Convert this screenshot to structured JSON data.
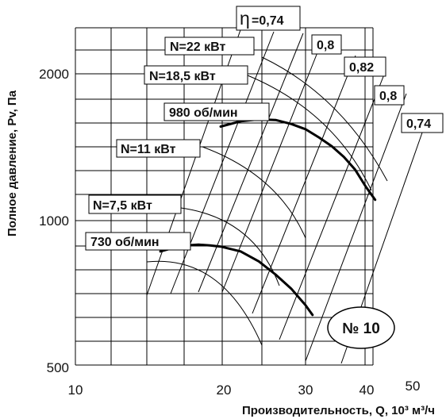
{
  "chart_data": {
    "type": "line",
    "title": "",
    "xlabel": "Производительность, Q, 10³ м³/ч",
    "ylabel": "Полное давление, Pv, Па",
    "xscale": "log",
    "yscale": "log",
    "xlim": [
      10,
      50
    ],
    "ylim": [
      500,
      2500
    ],
    "grid": true,
    "x_ticks": [
      "10",
      "20",
      "30",
      "40",
      "50"
    ],
    "y_ticks": [
      "500",
      "1000",
      "2000"
    ],
    "model_label": "№ 10",
    "series": [
      {
        "name": "980 об/мин",
        "x": [
          20,
          22,
          24,
          26,
          28,
          30,
          32,
          34,
          36,
          38,
          40,
          41.8
        ],
        "y": [
          1560,
          1600,
          1615,
          1610,
          1580,
          1540,
          1480,
          1420,
          1350,
          1270,
          1170,
          1100
        ]
      },
      {
        "name": "730 об/мин",
        "x": [
          15,
          16,
          17,
          18,
          19,
          20,
          22,
          24,
          26,
          28,
          30,
          31
        ],
        "y": [
          860,
          875,
          885,
          888,
          885,
          880,
          860,
          820,
          770,
          720,
          665,
          635
        ]
      }
    ],
    "annotations": {
      "power": [
        {
          "label": "N=22 кВт"
        },
        {
          "label": "N=18,5 кВт"
        },
        {
          "label": "N=11 кВт"
        },
        {
          "label": "N=7,5 кВт"
        }
      ],
      "speed": [
        {
          "label": "980 об/мин"
        },
        {
          "label": "730 об/мин"
        }
      ],
      "efficiency_symbol": "η",
      "efficiency": [
        {
          "label": "=0,74"
        },
        {
          "label": "0,8"
        },
        {
          "label": "0,82"
        },
        {
          "label": "0,8"
        },
        {
          "label": "0,74"
        }
      ]
    }
  }
}
